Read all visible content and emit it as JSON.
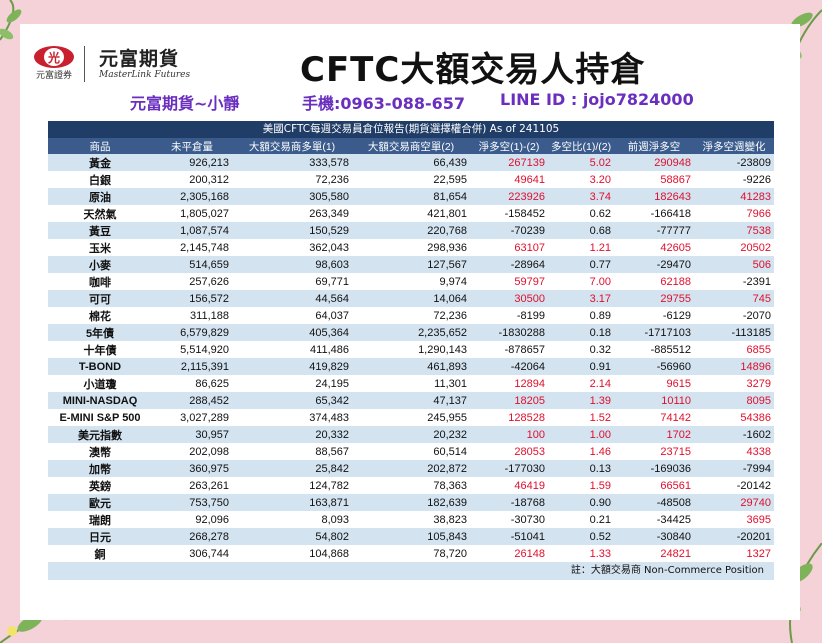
{
  "logo": {
    "brand": "元富證券",
    "cn_name": "元富期貨",
    "en_name": "MasterLink Futures"
  },
  "title": "CFTC大額交易人持倉",
  "contact": {
    "name": "元富期貨~小靜",
    "phone": "手機:0963-088-657",
    "line": "LINE ID : jojo7824000"
  },
  "colors": {
    "header_bg": "#1f3d66",
    "col_header_bg": "#3a5b8c",
    "row_alt": "#d3e3f0",
    "negative_text": "#111111",
    "positive_change": "#e0102d",
    "contact": "#6a2fbf"
  },
  "table": {
    "caption": "美國CFTC每週交易員倉位報告(期貨選擇權合併) As of  241105",
    "columns": [
      "商品",
      "未平倉量",
      "大額交易商多單(1)",
      "大額交易商空單(2)",
      "淨多空(1)-(2)",
      "多空比(1)/(2)",
      "前週淨多空",
      "淨多空週變化"
    ],
    "rows": [
      {
        "name": "黃金",
        "oi": "926,213",
        "long": "333,578",
        "short": "66,439",
        "net": "267139",
        "ratio": "5.02",
        "prev": "290948",
        "chg": "-23809"
      },
      {
        "name": "白銀",
        "oi": "200,312",
        "long": "72,236",
        "short": "22,595",
        "net": "49641",
        "ratio": "3.20",
        "prev": "58867",
        "chg": "-9226"
      },
      {
        "name": "原油",
        "oi": "2,305,168",
        "long": "305,580",
        "short": "81,654",
        "net": "223926",
        "ratio": "3.74",
        "prev": "182643",
        "chg": "41283"
      },
      {
        "name": "天然氣",
        "oi": "1,805,027",
        "long": "263,349",
        "short": "421,801",
        "net": "-158452",
        "ratio": "0.62",
        "prev": "-166418",
        "chg": "7966"
      },
      {
        "name": "黃豆",
        "oi": "1,087,574",
        "long": "150,529",
        "short": "220,768",
        "net": "-70239",
        "ratio": "0.68",
        "prev": "-77777",
        "chg": "7538"
      },
      {
        "name": "玉米",
        "oi": "2,145,748",
        "long": "362,043",
        "short": "298,936",
        "net": "63107",
        "ratio": "1.21",
        "prev": "42605",
        "chg": "20502"
      },
      {
        "name": "小麥",
        "oi": "514,659",
        "long": "98,603",
        "short": "127,567",
        "net": "-28964",
        "ratio": "0.77",
        "prev": "-29470",
        "chg": "506"
      },
      {
        "name": "咖啡",
        "oi": "257,626",
        "long": "69,771",
        "short": "9,974",
        "net": "59797",
        "ratio": "7.00",
        "prev": "62188",
        "chg": "-2391"
      },
      {
        "name": "可可",
        "oi": "156,572",
        "long": "44,564",
        "short": "14,064",
        "net": "30500",
        "ratio": "3.17",
        "prev": "29755",
        "chg": "745"
      },
      {
        "name": "棉花",
        "oi": "311,188",
        "long": "64,037",
        "short": "72,236",
        "net": "-8199",
        "ratio": "0.89",
        "prev": "-6129",
        "chg": "-2070"
      },
      {
        "name": "5年債",
        "oi": "6,579,829",
        "long": "405,364",
        "short": "2,235,652",
        "net": "-1830288",
        "ratio": "0.18",
        "prev": "-1717103",
        "chg": "-113185"
      },
      {
        "name": "十年債",
        "oi": "5,514,920",
        "long": "411,486",
        "short": "1,290,143",
        "net": "-878657",
        "ratio": "0.32",
        "prev": "-885512",
        "chg": "6855"
      },
      {
        "name": "T-BOND",
        "oi": "2,115,391",
        "long": "419,829",
        "short": "461,893",
        "net": "-42064",
        "ratio": "0.91",
        "prev": "-56960",
        "chg": "14896"
      },
      {
        "name": "小道瓊",
        "oi": "86,625",
        "long": "24,195",
        "short": "11,301",
        "net": "12894",
        "ratio": "2.14",
        "prev": "9615",
        "chg": "3279"
      },
      {
        "name": "MINI-NASDAQ",
        "oi": "288,452",
        "long": "65,342",
        "short": "47,137",
        "net": "18205",
        "ratio": "1.39",
        "prev": "10110",
        "chg": "8095"
      },
      {
        "name": "E-MINI S&P 500",
        "oi": "3,027,289",
        "long": "374,483",
        "short": "245,955",
        "net": "128528",
        "ratio": "1.52",
        "prev": "74142",
        "chg": "54386"
      },
      {
        "name": "美元指數",
        "oi": "30,957",
        "long": "20,332",
        "short": "20,232",
        "net": "100",
        "ratio": "1.00",
        "prev": "1702",
        "chg": "-1602"
      },
      {
        "name": "澳幣",
        "oi": "202,098",
        "long": "88,567",
        "short": "60,514",
        "net": "28053",
        "ratio": "1.46",
        "prev": "23715",
        "chg": "4338"
      },
      {
        "name": "加幣",
        "oi": "360,975",
        "long": "25,842",
        "short": "202,872",
        "net": "-177030",
        "ratio": "0.13",
        "prev": "-169036",
        "chg": "-7994"
      },
      {
        "name": "英鎊",
        "oi": "263,261",
        "long": "124,782",
        "short": "78,363",
        "net": "46419",
        "ratio": "1.59",
        "prev": "66561",
        "chg": "-20142"
      },
      {
        "name": "歐元",
        "oi": "753,750",
        "long": "163,871",
        "short": "182,639",
        "net": "-18768",
        "ratio": "0.90",
        "prev": "-48508",
        "chg": "29740"
      },
      {
        "name": "瑞朗",
        "oi": "92,096",
        "long": "8,093",
        "short": "38,823",
        "net": "-30730",
        "ratio": "0.21",
        "prev": "-34425",
        "chg": "3695"
      },
      {
        "name": "日元",
        "oi": "268,278",
        "long": "54,802",
        "short": "105,843",
        "net": "-51041",
        "ratio": "0.52",
        "prev": "-30840",
        "chg": "-20201"
      },
      {
        "name": "銅",
        "oi": "306,744",
        "long": "104,868",
        "short": "78,720",
        "net": "26148",
        "ratio": "1.33",
        "prev": "24821",
        "chg": "1327"
      }
    ],
    "footnote": "註：大額交易商 Non-Commerce Position"
  }
}
